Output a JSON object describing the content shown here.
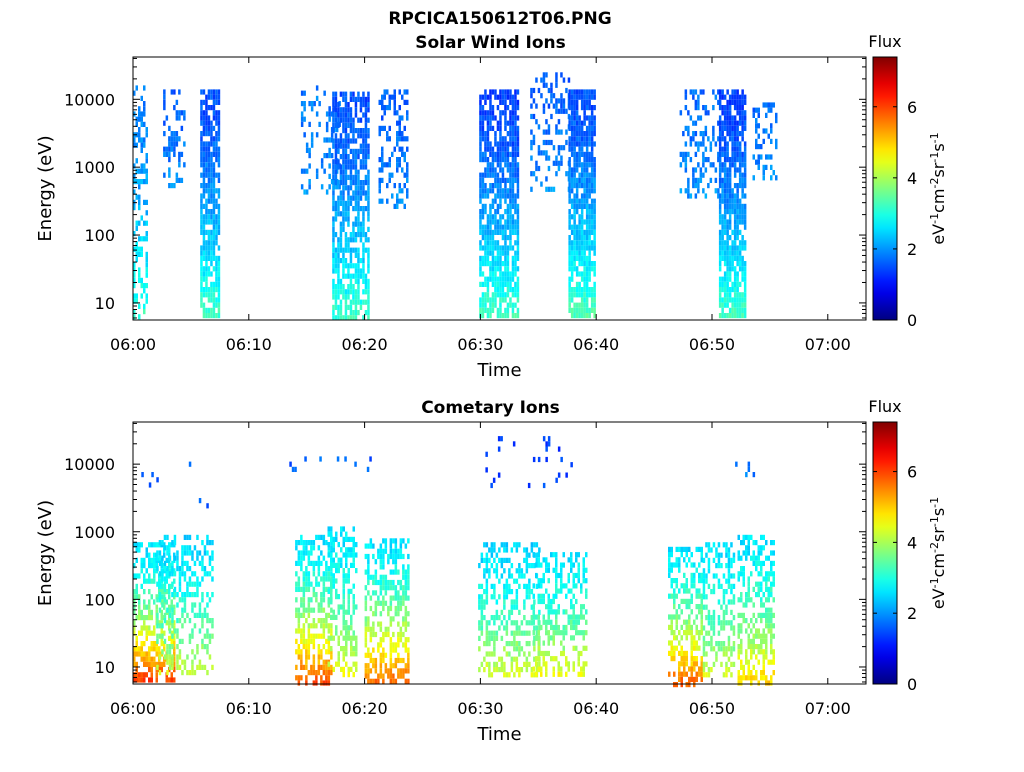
{
  "figure": {
    "title": "RPCICA150612T06.PNG"
  },
  "chart_data": [
    {
      "type": "heatmap",
      "title": "Solar Wind Ions",
      "xlabel": "Time",
      "ylabel": "Energy (eV)",
      "xticks": [
        "06:00",
        "06:10",
        "06:20",
        "06:30",
        "06:40",
        "06:50",
        "07:00"
      ],
      "xlim_minutes": [
        0,
        63.3
      ],
      "yticks": [
        "10",
        "100",
        "1000",
        "10000"
      ],
      "ylim": [
        5.6,
        42000
      ],
      "yscale": "log",
      "colorbar": {
        "label": "Flux",
        "unit_label": "eV-1cm-2sr-1s-1",
        "ticks": [
          "0",
          "2",
          "4",
          "6"
        ],
        "range": [
          0,
          7.4
        ],
        "colormap": "jet"
      },
      "bursts": [
        {
          "t_start_min": 0.0,
          "t_end_min": 1.2,
          "e_min_eV": 6,
          "e_max_eV": 16000,
          "low_flux": 3.2,
          "high_flux": 1.8,
          "density": 0.45
        },
        {
          "t_start_min": 2.6,
          "t_end_min": 4.4,
          "e_min_eV": 500,
          "e_max_eV": 14000,
          "low_flux": 2.0,
          "high_flux": 1.6,
          "density": 0.35
        },
        {
          "t_start_min": 5.8,
          "t_end_min": 7.4,
          "e_min_eV": 6,
          "e_max_eV": 14000,
          "low_flux": 3.3,
          "high_flux": 1.5,
          "density": 0.8
        },
        {
          "t_start_min": 14.5,
          "t_end_min": 17.8,
          "e_min_eV": 400,
          "e_max_eV": 16000,
          "low_flux": 2.0,
          "high_flux": 1.8,
          "density": 0.25
        },
        {
          "t_start_min": 17.2,
          "t_end_min": 20.3,
          "e_min_eV": 6,
          "e_max_eV": 13000,
          "low_flux": 3.2,
          "high_flux": 1.5,
          "density": 0.75
        },
        {
          "t_start_min": 21.2,
          "t_end_min": 23.6,
          "e_min_eV": 250,
          "e_max_eV": 14000,
          "low_flux": 2.0,
          "high_flux": 1.6,
          "density": 0.35
        },
        {
          "t_start_min": 29.9,
          "t_end_min": 33.2,
          "e_min_eV": 6,
          "e_max_eV": 14000,
          "low_flux": 3.3,
          "high_flux": 1.4,
          "density": 0.75
        },
        {
          "t_start_min": 34.3,
          "t_end_min": 37.6,
          "e_min_eV": 500,
          "e_max_eV": 25000,
          "low_flux": 2.0,
          "high_flux": 1.6,
          "density": 0.35
        },
        {
          "t_start_min": 37.6,
          "t_end_min": 39.8,
          "e_min_eV": 6,
          "e_max_eV": 14000,
          "low_flux": 3.4,
          "high_flux": 1.5,
          "density": 0.85
        },
        {
          "t_start_min": 47.2,
          "t_end_min": 50.6,
          "e_min_eV": 400,
          "e_max_eV": 14000,
          "low_flux": 2.0,
          "high_flux": 1.7,
          "density": 0.3
        },
        {
          "t_start_min": 50.6,
          "t_end_min": 52.8,
          "e_min_eV": 6,
          "e_max_eV": 14000,
          "low_flux": 3.3,
          "high_flux": 1.4,
          "density": 0.8
        },
        {
          "t_start_min": 53.5,
          "t_end_min": 55.6,
          "e_min_eV": 700,
          "e_max_eV": 9000,
          "low_flux": 2.0,
          "high_flux": 1.7,
          "density": 0.3
        }
      ]
    },
    {
      "type": "heatmap",
      "title": "Cometary Ions",
      "xlabel": "Time",
      "ylabel": "Energy (eV)",
      "xticks": [
        "06:00",
        "06:10",
        "06:20",
        "06:30",
        "06:40",
        "06:50",
        "07:00"
      ],
      "xlim_minutes": [
        0,
        63.3
      ],
      "yticks": [
        "10",
        "100",
        "1000",
        "10000"
      ],
      "ylim": [
        5.6,
        42000
      ],
      "yscale": "log",
      "colorbar": {
        "label": "Flux",
        "unit_label": "eV-1cm-2sr-1s-1",
        "ticks": [
          "0",
          "2",
          "4",
          "6"
        ],
        "range": [
          0,
          7.4
        ],
        "colormap": "jet"
      },
      "bursts": [
        {
          "t_start_min": 0.0,
          "t_end_min": 3.5,
          "e_min_eV": 6,
          "e_max_eV": 700,
          "low_flux": 6.2,
          "high_flux": 2.6,
          "density": 0.6
        },
        {
          "t_start_min": 2.0,
          "t_end_min": 6.8,
          "e_min_eV": 8,
          "e_max_eV": 900,
          "low_flux": 4.3,
          "high_flux": 2.5,
          "density": 0.4
        },
        {
          "t_start_min": 14.0,
          "t_end_min": 17.2,
          "e_min_eV": 6,
          "e_max_eV": 900,
          "low_flux": 6.0,
          "high_flux": 2.6,
          "density": 0.6
        },
        {
          "t_start_min": 16.8,
          "t_end_min": 19.2,
          "e_min_eV": 8,
          "e_max_eV": 1200,
          "low_flux": 4.5,
          "high_flux": 2.6,
          "density": 0.45
        },
        {
          "t_start_min": 20.0,
          "t_end_min": 23.8,
          "e_min_eV": 6,
          "e_max_eV": 800,
          "low_flux": 5.8,
          "high_flux": 2.6,
          "density": 0.55
        },
        {
          "t_start_min": 29.8,
          "t_end_min": 35.0,
          "e_min_eV": 8,
          "e_max_eV": 700,
          "low_flux": 4.4,
          "high_flux": 2.5,
          "density": 0.45
        },
        {
          "t_start_min": 34.5,
          "t_end_min": 39.2,
          "e_min_eV": 8,
          "e_max_eV": 500,
          "low_flux": 4.6,
          "high_flux": 2.6,
          "density": 0.45
        },
        {
          "t_start_min": 46.2,
          "t_end_min": 49.2,
          "e_min_eV": 6,
          "e_max_eV": 600,
          "low_flux": 5.8,
          "high_flux": 2.6,
          "density": 0.55
        },
        {
          "t_start_min": 49.2,
          "t_end_min": 51.8,
          "e_min_eV": 8,
          "e_max_eV": 700,
          "low_flux": 4.3,
          "high_flux": 2.6,
          "density": 0.45
        },
        {
          "t_start_min": 52.2,
          "t_end_min": 55.4,
          "e_min_eV": 6,
          "e_max_eV": 900,
          "low_flux": 5.0,
          "high_flux": 2.6,
          "density": 0.5
        },
        {
          "t_start_min": 0.5,
          "t_end_min": 6.5,
          "e_min_eV": 2500,
          "e_max_eV": 13000,
          "low_flux": 1.5,
          "high_flux": 1.5,
          "density": 0.05
        },
        {
          "t_start_min": 13.5,
          "t_end_min": 22.0,
          "e_min_eV": 9000,
          "e_max_eV": 13000,
          "low_flux": 1.6,
          "high_flux": 1.6,
          "density": 0.08
        },
        {
          "t_start_min": 30.0,
          "t_end_min": 38.0,
          "e_min_eV": 5000,
          "e_max_eV": 26000,
          "low_flux": 1.4,
          "high_flux": 1.4,
          "density": 0.06
        },
        {
          "t_start_min": 52.0,
          "t_end_min": 54.0,
          "e_min_eV": 6000,
          "e_max_eV": 13000,
          "low_flux": 1.8,
          "high_flux": 1.8,
          "density": 0.12
        }
      ]
    }
  ]
}
